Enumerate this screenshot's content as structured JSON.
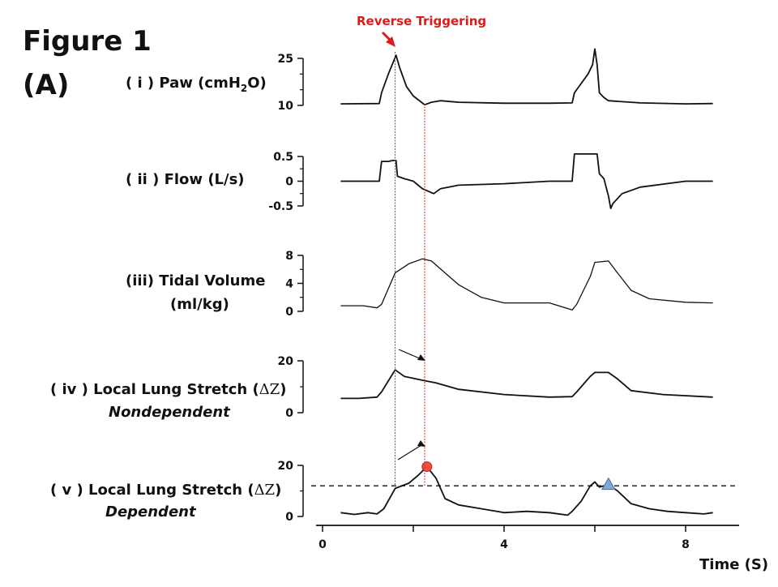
{
  "figure": {
    "title_line1": "Figure 1",
    "title_line2": "(A)"
  },
  "annotation": {
    "label": "Reverse Triggering",
    "color": "#dd1b1b",
    "markers_time_s": [
      1.6,
      2.25
    ]
  },
  "xaxis": {
    "label": "Time (S)",
    "ticks": [
      0,
      2,
      4,
      6,
      8
    ],
    "tick_labels": [
      "0",
      "",
      "4",
      "",
      "8"
    ],
    "range": [
      0,
      9
    ]
  },
  "chart_data": [
    {
      "type": "line",
      "name": "Paw",
      "label_prefix": "( i ) Paw (cmH",
      "label_sub": "2",
      "label_suffix": "O)",
      "ylim": [
        10,
        25
      ],
      "ytick_labels": [
        "25",
        "10"
      ],
      "ytick_values": [
        25,
        10
      ],
      "x": [
        0.4,
        1.25,
        1.3,
        1.45,
        1.62,
        1.7,
        1.85,
        2.0,
        2.25,
        2.4,
        2.6,
        3.0,
        4.0,
        5.0,
        5.5,
        5.55,
        5.7,
        5.85,
        5.95,
        6.0,
        6.05,
        6.1,
        6.2,
        6.3,
        7.0,
        8.0,
        8.6
      ],
      "y": [
        10.5,
        10.6,
        14,
        20,
        26,
        22,
        16,
        13,
        10.2,
        11,
        11.5,
        11,
        10.7,
        10.7,
        10.8,
        14,
        17,
        20,
        23,
        28,
        23,
        14,
        12.5,
        11.5,
        10.8,
        10.5,
        10.6
      ]
    },
    {
      "type": "line",
      "name": "Flow",
      "label": "( ii ) Flow (L/s)",
      "ylim": [
        -0.5,
        0.5
      ],
      "ytick_labels": [
        "0.5",
        "0",
        "-0.5"
      ],
      "ytick_values": [
        0.5,
        0,
        -0.5
      ],
      "x": [
        0.4,
        1.0,
        1.25,
        1.3,
        1.45,
        1.55,
        1.62,
        1.65,
        1.8,
        2.0,
        2.2,
        2.45,
        2.6,
        3.0,
        4.0,
        5.0,
        5.5,
        5.55,
        6.05,
        6.1,
        6.2,
        6.3,
        6.35,
        6.4,
        6.6,
        7.0,
        8.0,
        8.6
      ],
      "y": [
        0.0,
        0.0,
        0.0,
        0.4,
        0.4,
        0.42,
        0.42,
        0.1,
        0.05,
        0.0,
        -0.15,
        -0.25,
        -0.15,
        -0.08,
        -0.05,
        0.0,
        0.0,
        0.55,
        0.55,
        0.15,
        0.05,
        -0.3,
        -0.55,
        -0.45,
        -0.25,
        -0.12,
        0.0,
        0.0
      ]
    },
    {
      "type": "line",
      "name": "Tidal Volume",
      "label_line1": "(iii) Tidal Volume",
      "label_line2": "(ml/kg)",
      "ylim": [
        0,
        8
      ],
      "ytick_labels": [
        "8",
        "4",
        "0"
      ],
      "ytick_values": [
        8,
        4,
        0
      ],
      "x": [
        0.4,
        0.9,
        1.2,
        1.3,
        1.6,
        1.9,
        2.2,
        2.4,
        2.7,
        3.0,
        3.5,
        4.0,
        5.0,
        5.5,
        5.6,
        5.9,
        6.0,
        6.3,
        6.5,
        6.8,
        7.2,
        8.0,
        8.6
      ],
      "y": [
        0.8,
        0.8,
        0.5,
        1.0,
        5.5,
        6.8,
        7.5,
        7.2,
        5.5,
        3.8,
        2.0,
        1.2,
        1.2,
        0.2,
        1.0,
        5.0,
        7.0,
        7.2,
        5.5,
        3.0,
        1.8,
        1.3,
        1.2
      ]
    },
    {
      "type": "line",
      "name": "Local Lung Stretch Nondependent",
      "label_prefix": "( iv ) Local Lung Stretch (",
      "label_symbol": "ΔZ",
      "label_suffix": ")",
      "label_line2": "Nondependent",
      "ylim": [
        0,
        20
      ],
      "ytick_labels": [
        "20",
        "0"
      ],
      "ytick_values": [
        20,
        0
      ],
      "x": [
        0.4,
        0.8,
        1.2,
        1.3,
        1.6,
        1.8,
        2.2,
        2.5,
        3.0,
        4.0,
        5.0,
        5.5,
        5.6,
        5.9,
        6.0,
        6.3,
        6.5,
        6.8,
        7.5,
        8.6
      ],
      "y": [
        5.5,
        5.5,
        6.0,
        8.0,
        16.5,
        14.0,
        12.5,
        11.5,
        9.0,
        7.0,
        6.0,
        6.2,
        8.0,
        14.0,
        15.5,
        15.5,
        13.0,
        8.5,
        7.0,
        6.0
      ]
    },
    {
      "type": "line",
      "name": "Local Lung Stretch Dependent",
      "label_prefix": "( v ) Local Lung Stretch (",
      "label_symbol": "ΔZ",
      "label_suffix": ")",
      "label_line2": "Dependent",
      "ylim": [
        0,
        20
      ],
      "ytick_labels": [
        "20",
        "0"
      ],
      "ytick_values": [
        20,
        0
      ],
      "threshold": 12,
      "circle_marker": {
        "x": 2.3,
        "y": 19.5,
        "color": "#ef4b4b"
      },
      "triangle_marker": {
        "x": 6.3,
        "y": 12.5,
        "color": "#7fa8d6"
      },
      "x": [
        0.4,
        0.7,
        1.0,
        1.2,
        1.35,
        1.6,
        1.9,
        2.1,
        2.3,
        2.5,
        2.7,
        3.0,
        3.5,
        4.0,
        4.5,
        5.0,
        5.4,
        5.5,
        5.7,
        5.9,
        6.0,
        6.1,
        6.3,
        6.5,
        6.8,
        7.2,
        7.6,
        8.0,
        8.4,
        8.6
      ],
      "y": [
        1.5,
        0.8,
        1.5,
        1.0,
        3.0,
        11.0,
        13.0,
        16.0,
        19.5,
        15.0,
        7.0,
        4.5,
        3.0,
        1.5,
        2.0,
        1.5,
        0.5,
        2.0,
        6.0,
        12.0,
        13.5,
        11.5,
        12.5,
        10.0,
        5.0,
        3.0,
        2.0,
        1.5,
        1.0,
        1.5
      ]
    }
  ]
}
